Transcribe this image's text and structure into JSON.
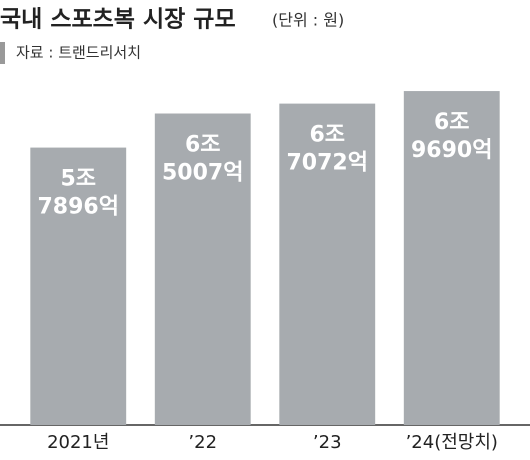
{
  "chart_data": {
    "type": "bar",
    "title": "국내 스포츠복 시장 규모",
    "subtitle": "(단위 : 원)",
    "source": "자료 : 트랜드리서치",
    "categories": [
      "2021년",
      "’22",
      "’23",
      "’24(전망치)"
    ],
    "values": [
      57896,
      65007,
      67072,
      69690
    ],
    "value_labels": [
      [
        "5조",
        "7896억"
      ],
      [
        "6조",
        "5007억"
      ],
      [
        "6조",
        "7072억"
      ],
      [
        "6조",
        "9690억"
      ]
    ],
    "color": "#a7abaf",
    "ylim": [
      0,
      72000
    ]
  }
}
